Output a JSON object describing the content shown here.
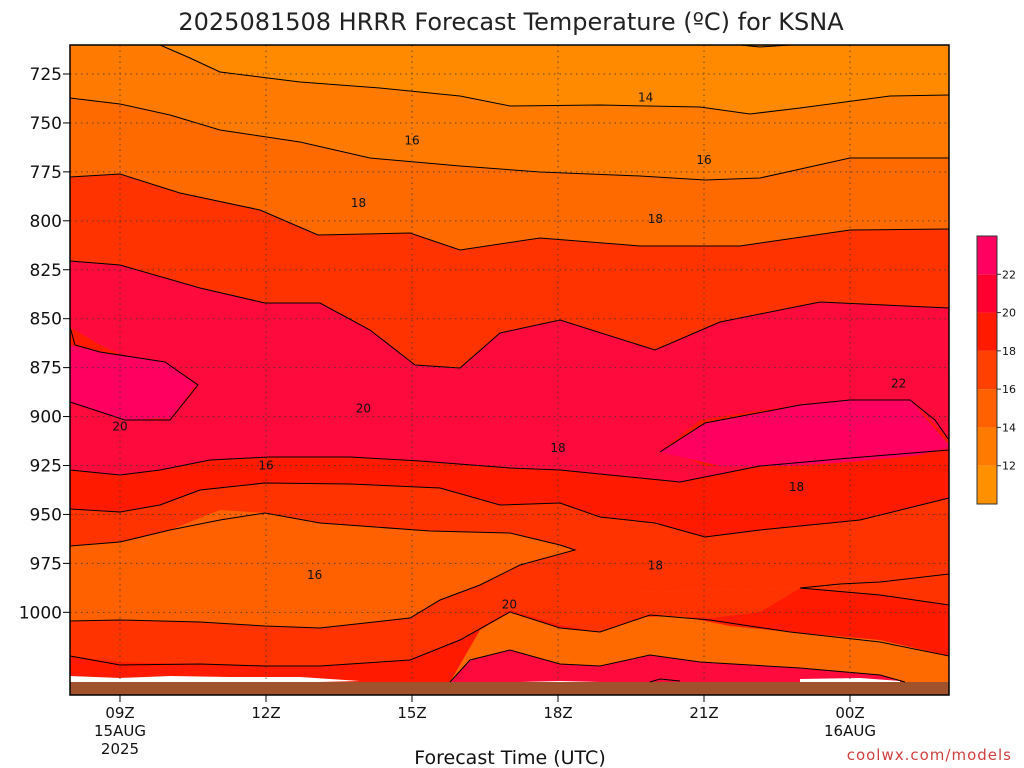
{
  "chart_data": {
    "type": "contour",
    "title": "2025081508 HRRR Forecast Temperature (ºC) for KSNA",
    "xlabel": "Forecast Time (UTC)",
    "ylabel": "",
    "y_axis": {
      "ticks": [
        "725",
        "750",
        "775",
        "800",
        "825",
        "850",
        "875",
        "900",
        "925",
        "950",
        "975",
        "1000"
      ],
      "values": [
        725,
        750,
        775,
        800,
        825,
        850,
        875,
        900,
        925,
        950,
        975,
        1000
      ],
      "inverted": true
    },
    "x_axis": {
      "ticks": [
        {
          "hour": 9,
          "label": "09Z",
          "line2": "15AUG",
          "line3": "2025"
        },
        {
          "hour": 12,
          "label": "12Z",
          "line2": "",
          "line3": ""
        },
        {
          "hour": 15,
          "label": "15Z",
          "line2": "",
          "line3": ""
        },
        {
          "hour": 18,
          "label": "18Z",
          "line2": "",
          "line3": ""
        },
        {
          "hour": 21,
          "label": "21Z",
          "line2": "",
          "line3": ""
        },
        {
          "hour": 24,
          "label": "00Z",
          "line2": "16AUG",
          "line3": ""
        }
      ]
    },
    "colorbar": {
      "labels": [
        "12",
        "14",
        "16",
        "18",
        "20",
        "22"
      ],
      "colors": [
        "#ff9000",
        "#ff7a00",
        "#ff6000",
        "#ff4000",
        "#ff1a00",
        "#ff0030",
        "#ff0060"
      ]
    },
    "contour_labels": [
      {
        "text": "14",
        "hour": 19.8,
        "p": 737
      },
      {
        "text": "16",
        "hour": 15.0,
        "p": 759
      },
      {
        "text": "16",
        "hour": 21.0,
        "p": 769
      },
      {
        "text": "18",
        "hour": 13.9,
        "p": 791
      },
      {
        "text": "18",
        "hour": 20.0,
        "p": 799
      },
      {
        "text": "20",
        "hour": 9.0,
        "p": 905
      },
      {
        "text": "20",
        "hour": 14.0,
        "p": 896
      },
      {
        "text": "22",
        "hour": 25.0,
        "p": 883
      },
      {
        "text": "18",
        "hour": 18.0,
        "p": 916
      },
      {
        "text": "16",
        "hour": 12.0,
        "p": 925
      },
      {
        "text": "18",
        "hour": 22.9,
        "p": 936
      },
      {
        "text": "18",
        "hour": 20.0,
        "p": 976
      },
      {
        "text": "16",
        "hour": 13.0,
        "p": 981
      },
      {
        "text": "20",
        "hour": 17.0,
        "p": 996
      }
    ],
    "grid": true
  },
  "credit": "coolwx.com/models"
}
